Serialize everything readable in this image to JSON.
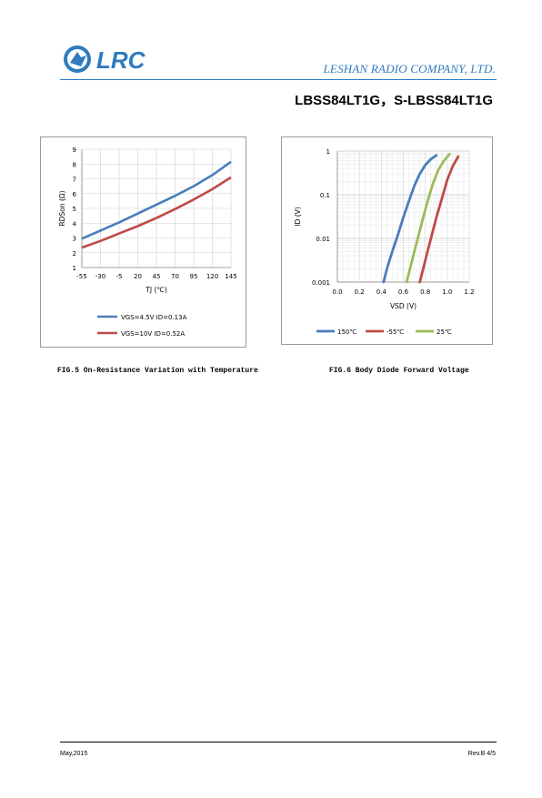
{
  "header": {
    "logo_text": "LRC",
    "company": "LESHAN RADIO COMPANY, LTD.",
    "part_numbers": "LBSS84LT1G，S-LBSS84LT1G",
    "brand_color": "#2e7bbf"
  },
  "chart_data": [
    {
      "type": "line",
      "xlabel": "TJ (℃)",
      "ylabel": "RDSon (Ω)",
      "x_ticks": [
        "-55",
        "-30",
        "-5",
        "20",
        "45",
        "70",
        "95",
        "120",
        "145"
      ],
      "y_ticks": [
        "1",
        "2",
        "3",
        "4",
        "5",
        "6",
        "7",
        "8",
        "9"
      ],
      "xlim": [
        -55,
        145
      ],
      "ylim": [
        1,
        9
      ],
      "grid": true,
      "legend_position": "bottom",
      "series": [
        {
          "name": "VGS=4.5V ID=0.13A",
          "color": "#4a7ebb",
          "x": [
            -55,
            -30,
            -5,
            20,
            45,
            70,
            95,
            120,
            145
          ],
          "y": [
            2.95,
            3.5,
            4.05,
            4.65,
            5.25,
            5.85,
            6.5,
            7.25,
            8.15
          ]
        },
        {
          "name": "VGS=10V ID=0.52A",
          "color": "#be4b48",
          "x": [
            -55,
            -30,
            -5,
            20,
            45,
            70,
            95,
            120,
            145
          ],
          "y": [
            2.35,
            2.8,
            3.3,
            3.8,
            4.35,
            4.95,
            5.6,
            6.3,
            7.1
          ]
        }
      ]
    },
    {
      "type": "line",
      "xlabel": "VSD (V)",
      "ylabel": "ID (V)",
      "x_ticks": [
        "0.0",
        "0.2",
        "0.4",
        "0.6",
        "0.8",
        "1.0",
        "1.2"
      ],
      "y_ticks": [
        "0.001",
        "0.01",
        "0.1",
        "1"
      ],
      "xlim": [
        0,
        1.2
      ],
      "ylim": [
        0.001,
        1
      ],
      "y_scale": "log",
      "grid": true,
      "legend_position": "bottom",
      "series": [
        {
          "name": "150℃",
          "color": "#4a7ebb",
          "x": [
            0.42,
            0.45,
            0.5,
            0.55,
            0.6,
            0.65,
            0.7,
            0.75,
            0.8,
            0.85,
            0.9
          ],
          "y": [
            0.001,
            0.002,
            0.005,
            0.012,
            0.03,
            0.07,
            0.16,
            0.3,
            0.48,
            0.65,
            0.8
          ]
        },
        {
          "name": "-55℃",
          "color": "#be4b48",
          "x": [
            0.75,
            0.78,
            0.82,
            0.86,
            0.9,
            0.95,
            1.0,
            1.05,
            1.1
          ],
          "y": [
            0.001,
            0.002,
            0.005,
            0.012,
            0.03,
            0.08,
            0.22,
            0.45,
            0.75
          ]
        },
        {
          "name": "25℃",
          "color": "#9bbb59",
          "x": [
            0.63,
            0.66,
            0.7,
            0.74,
            0.78,
            0.82,
            0.87,
            0.92,
            0.97,
            1.02
          ],
          "y": [
            0.001,
            0.002,
            0.005,
            0.012,
            0.03,
            0.07,
            0.18,
            0.38,
            0.6,
            0.85
          ]
        }
      ]
    }
  ],
  "captions": {
    "fig5": "FIG.5 On-Resistance Variation with Temperature",
    "fig6": "FIG.6 Body Diode Forward Voltage"
  },
  "footer": {
    "date": "May,2015",
    "revision": "Rev.B  4/5"
  }
}
